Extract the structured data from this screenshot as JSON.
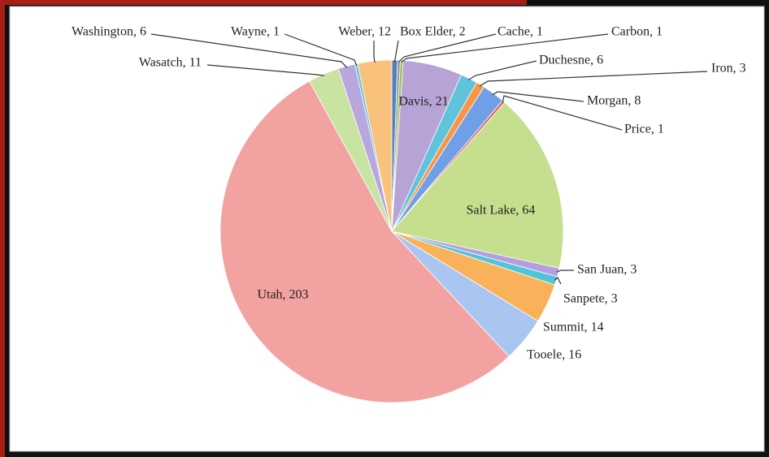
{
  "chart_data": {
    "type": "pie",
    "values": [
      2,
      1,
      1,
      21,
      6,
      3,
      8,
      1,
      64,
      3,
      3,
      14,
      16,
      203,
      11,
      6,
      1,
      12
    ],
    "value_labels": [
      "Box Elder, 2",
      "Cache, 1",
      "Carbon, 1",
      "Davis, 21",
      "Duchesne, 6",
      "Iron, 3",
      "Morgan, 8",
      "Price, 1",
      "Salt Lake, 64",
      "San Juan, 3",
      "Sanpete, 3",
      "Summit, 14",
      "Tooele, 16",
      "Utah, 203",
      "Wasatch, 11",
      "Washington, 6",
      "Wayne, 1",
      "Weber, 12"
    ],
    "colors": [
      "#4f81bd",
      "#9a9a9a",
      "#9bbb59",
      "#b7a3d6",
      "#5fc3dc",
      "#f79646",
      "#6f9fe6",
      "#e06666",
      "#c6df8e",
      "#b49ee0",
      "#52c4d8",
      "#f9b25a",
      "#a9c6f0",
      "#f3a2a2",
      "#c9e3a2",
      "#b9a6dc",
      "#63c6dc",
      "#f8c27d"
    ]
  }
}
